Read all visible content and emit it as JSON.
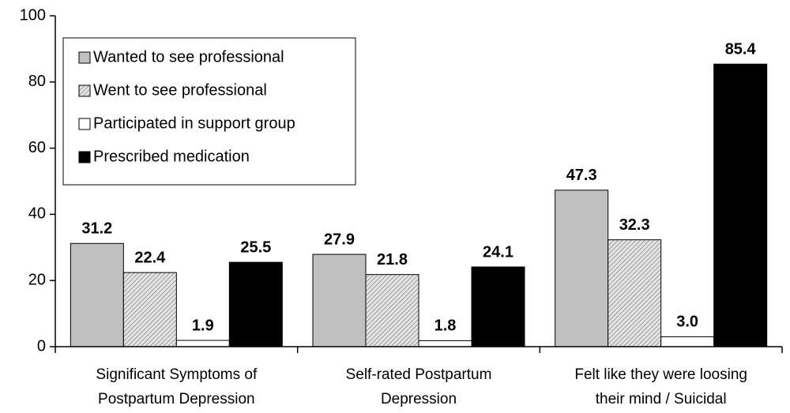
{
  "chart_data": {
    "type": "bar",
    "categories": [
      [
        "Significant Symptoms of",
        "Postpartum Depression"
      ],
      [
        "Self-rated Postpartum",
        "Depression"
      ],
      [
        "Felt like they were loosing",
        "their mind / Suicidal"
      ]
    ],
    "series": [
      {
        "name": "Wanted to see professional",
        "color": "#c0c0c0",
        "values": [
          31.2,
          27.9,
          47.3
        ],
        "value_labels": [
          "31.2",
          "27.9",
          "47.3"
        ]
      },
      {
        "name": "Went to see professional",
        "color": "#c0c0c0",
        "pattern": "hatch",
        "values": [
          22.4,
          21.8,
          32.3
        ],
        "value_labels": [
          "22.4",
          "21.8",
          "32.3"
        ]
      },
      {
        "name": "Participated in support group",
        "color": "#ffffff",
        "values": [
          1.9,
          1.8,
          3.0
        ],
        "value_labels": [
          "1.9",
          "1.8",
          "3.0"
        ]
      },
      {
        "name": "Prescribed medication",
        "color": "#000000",
        "values": [
          25.5,
          24.1,
          85.4
        ],
        "value_labels": [
          "25.5",
          "24.1",
          "85.4"
        ]
      }
    ],
    "ylim": [
      0,
      100
    ],
    "yticks": [
      0,
      20,
      40,
      60,
      80,
      100
    ],
    "grid": false,
    "legend": "upper left"
  }
}
